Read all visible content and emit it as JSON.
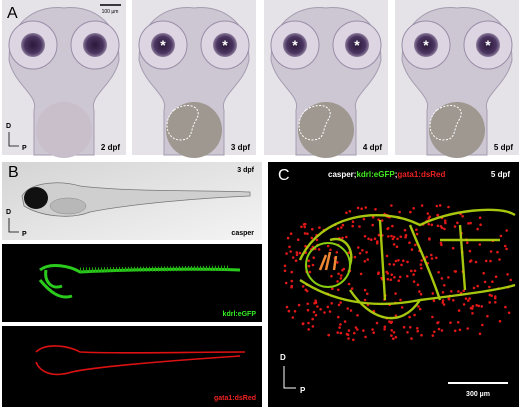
{
  "panel_a": {
    "label": "A",
    "scale_bar": "100 µm",
    "axis": {
      "dorsal": "D",
      "posterior": "P"
    },
    "images": [
      {
        "stage": "2 dpf",
        "markers": []
      },
      {
        "stage": "3 dpf",
        "markers": [
          "*",
          "*"
        ]
      },
      {
        "stage": "4 dpf",
        "markers": [
          "*",
          "*"
        ]
      },
      {
        "stage": "5 dpf",
        "markers": [
          "*",
          "*"
        ]
      }
    ]
  },
  "panel_b": {
    "label": "B",
    "axis": {
      "dorsal": "D",
      "posterior": "P"
    },
    "images": [
      {
        "stage": "3 dpf",
        "caption": "casper"
      },
      {
        "caption": "kdrl:eGFP"
      },
      {
        "caption": "gata1:dsRed"
      }
    ]
  },
  "panel_c": {
    "label": "C",
    "title": [
      "casper;",
      "kdrl:eGFP",
      ";",
      "gata1:dsRed"
    ],
    "stage": "5 dpf",
    "axis": {
      "dorsal": "D",
      "posterior": "P"
    },
    "scale_bar": "300 µm"
  }
}
